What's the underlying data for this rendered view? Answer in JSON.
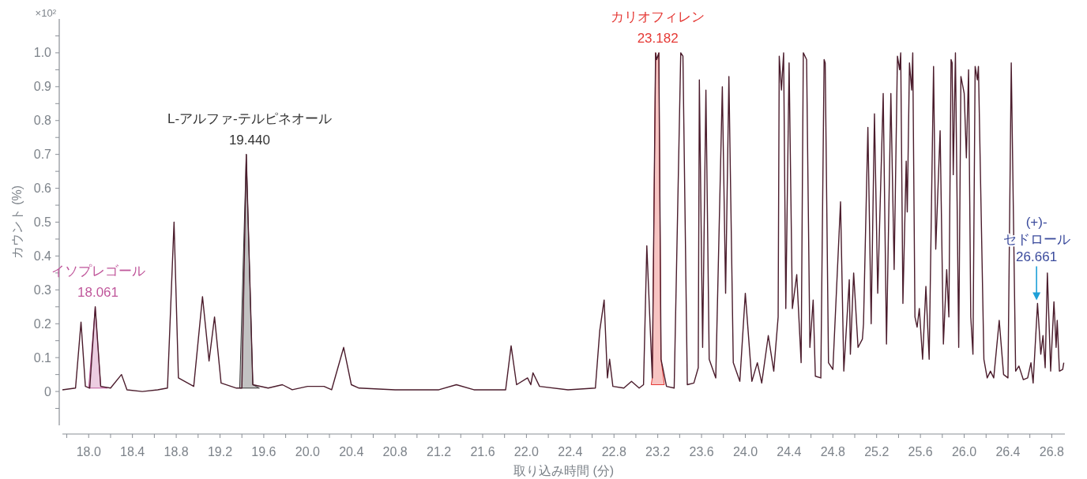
{
  "chart_data": {
    "type": "line",
    "xlabel": "取り込み時間 (分)",
    "ylabel": "カウント (%)",
    "xlim": [
      17.76,
      26.92
    ],
    "ylim": [
      -0.1,
      1.1
    ],
    "xticks": [
      {
        "value": 17.8,
        "label": null
      },
      {
        "value": 18.0,
        "label": "18.0"
      },
      {
        "value": 18.2,
        "label": null
      },
      {
        "value": 18.4,
        "label": "18.4"
      },
      {
        "value": 18.6,
        "label": null
      },
      {
        "value": 18.8,
        "label": "18.8"
      },
      {
        "value": 19.0,
        "label": null
      },
      {
        "value": 19.2,
        "label": "19.2"
      },
      {
        "value": 19.4,
        "label": null
      },
      {
        "value": 19.6,
        "label": "19.6"
      },
      {
        "value": 19.8,
        "label": null
      },
      {
        "value": 20.0,
        "label": "20.0"
      },
      {
        "value": 20.2,
        "label": null
      },
      {
        "value": 20.4,
        "label": "20.4"
      },
      {
        "value": 20.6,
        "label": null
      },
      {
        "value": 20.8,
        "label": "20.8"
      },
      {
        "value": 21.0,
        "label": null
      },
      {
        "value": 21.2,
        "label": "21.2"
      },
      {
        "value": 21.4,
        "label": null
      },
      {
        "value": 21.6,
        "label": "21.6"
      },
      {
        "value": 21.8,
        "label": null
      },
      {
        "value": 22.0,
        "label": "22.0"
      },
      {
        "value": 22.2,
        "label": null
      },
      {
        "value": 22.4,
        "label": "22.4"
      },
      {
        "value": 22.6,
        "label": null
      },
      {
        "value": 22.8,
        "label": "22.8"
      },
      {
        "value": 23.0,
        "label": null
      },
      {
        "value": 23.2,
        "label": "23.2"
      },
      {
        "value": 23.4,
        "label": null
      },
      {
        "value": 23.6,
        "label": "23.6"
      },
      {
        "value": 23.8,
        "label": null
      },
      {
        "value": 24.0,
        "label": "24.0"
      },
      {
        "value": 24.2,
        "label": null
      },
      {
        "value": 24.4,
        "label": "24.4"
      },
      {
        "value": 24.6,
        "label": null
      },
      {
        "value": 24.8,
        "label": "24.8"
      },
      {
        "value": 25.0,
        "label": null
      },
      {
        "value": 25.2,
        "label": "25.2"
      },
      {
        "value": 25.4,
        "label": null
      },
      {
        "value": 25.6,
        "label": "25.6"
      },
      {
        "value": 25.8,
        "label": null
      },
      {
        "value": 26.0,
        "label": "26.0"
      },
      {
        "value": 26.2,
        "label": null
      },
      {
        "value": 26.4,
        "label": "26.4"
      },
      {
        "value": 26.6,
        "label": null
      },
      {
        "value": 26.8,
        "label": "26.8"
      }
    ],
    "yticks": [
      {
        "value": -0.05,
        "label": null
      },
      {
        "value": 0,
        "label": "0"
      },
      {
        "value": 0.05,
        "label": null
      },
      {
        "value": 0.1,
        "label": "0.1"
      },
      {
        "value": 0.15,
        "label": null
      },
      {
        "value": 0.2,
        "label": "0.2"
      },
      {
        "value": 0.25,
        "label": null
      },
      {
        "value": 0.3,
        "label": "0.3"
      },
      {
        "value": 0.35,
        "label": null
      },
      {
        "value": 0.4,
        "label": "0.4"
      },
      {
        "value": 0.45,
        "label": null
      },
      {
        "value": 0.5,
        "label": "0.5"
      },
      {
        "value": 0.55,
        "label": null
      },
      {
        "value": 0.6,
        "label": "0.6"
      },
      {
        "value": 0.65,
        "label": null
      },
      {
        "value": 0.7,
        "label": "0.7"
      },
      {
        "value": 0.75,
        "label": null
      },
      {
        "value": 0.8,
        "label": "0.8"
      },
      {
        "value": 0.85,
        "label": null
      },
      {
        "value": 0.9,
        "label": "0.9"
      },
      {
        "value": 0.95,
        "label": null
      },
      {
        "value": 1.0,
        "label": "1.0"
      },
      {
        "value": 1.05,
        "label": null
      }
    ],
    "series": [
      {
        "color": "#4b1c2c",
        "x": [
          17.76,
          17.88,
          17.93,
          17.97,
          18.01,
          18.06,
          18.11,
          18.2,
          18.3,
          18.35,
          18.49,
          18.63,
          18.72,
          18.78,
          18.82,
          18.96,
          19.04,
          19.1,
          19.15,
          19.21,
          19.35,
          19.4,
          19.44,
          19.5,
          19.64,
          19.77,
          19.86,
          20.0,
          20.15,
          20.22,
          20.33,
          20.4,
          20.47,
          20.8,
          21.2,
          21.36,
          21.52,
          21.81,
          21.86,
          21.91,
          22.01,
          22.04,
          22.06,
          22.12,
          22.38,
          22.63,
          22.67,
          22.71,
          22.74,
          22.76,
          22.79,
          22.89,
          22.96,
          23.03,
          23.07,
          23.1,
          23.15,
          23.18,
          23.19,
          23.21,
          23.23,
          23.28,
          23.35,
          23.41,
          23.43,
          23.47,
          23.53,
          23.57,
          23.58,
          23.61,
          23.64,
          23.67,
          23.73,
          23.79,
          23.82,
          23.85,
          23.89,
          23.95,
          24.0,
          24.06,
          24.11,
          24.15,
          24.21,
          24.26,
          24.3,
          24.31,
          24.33,
          24.35,
          24.37,
          24.4,
          24.43,
          24.47,
          24.51,
          24.53,
          24.56,
          24.59,
          24.62,
          24.64,
          24.69,
          24.72,
          24.73,
          24.76,
          24.8,
          24.87,
          24.9,
          24.95,
          24.96,
          24.99,
          25.03,
          25.07,
          25.08,
          25.12,
          25.15,
          25.18,
          25.21,
          25.26,
          25.29,
          25.33,
          25.36,
          25.39,
          25.41,
          25.42,
          25.44,
          25.47,
          25.48,
          25.5,
          25.52,
          25.53,
          25.55,
          25.57,
          25.59,
          25.62,
          25.65,
          25.68,
          25.72,
          25.74,
          25.78,
          25.81,
          25.84,
          25.86,
          25.88,
          25.89,
          25.9,
          25.92,
          25.95,
          25.97,
          26.0,
          26.02,
          26.04,
          26.06,
          26.08,
          26.1,
          26.12,
          26.13,
          26.18,
          26.21,
          26.24,
          26.27,
          26.32,
          26.36,
          26.4,
          26.43,
          26.47,
          26.5,
          26.54,
          26.58,
          26.61,
          26.63,
          26.67,
          26.7,
          26.72,
          26.74,
          26.76,
          26.79,
          26.82,
          26.84,
          26.85,
          26.87,
          26.9,
          26.91
        ],
        "values": [
          0.005,
          0.01,
          0.205,
          0.015,
          0.01,
          0.25,
          0.015,
          0.01,
          0.05,
          0.005,
          0,
          0.005,
          0.01,
          0.5,
          0.04,
          0.015,
          0.28,
          0.09,
          0.22,
          0.025,
          0.01,
          0.01,
          0.7,
          0.02,
          0.01,
          0.02,
          0.005,
          0.015,
          0.015,
          0.005,
          0.13,
          0.02,
          0.01,
          0.005,
          0.005,
          0.02,
          0.005,
          0.005,
          0.135,
          0.02,
          0.04,
          0.02,
          0.055,
          0.015,
          0.005,
          0.01,
          0.18,
          0.27,
          0.04,
          0.095,
          0.015,
          0.01,
          0.03,
          0.01,
          0.02,
          0.43,
          0.04,
          1.0,
          0.98,
          1.0,
          0.095,
          0.015,
          0.01,
          1.0,
          0.99,
          0.02,
          0.025,
          0.07,
          0.92,
          0.13,
          0.89,
          0.095,
          0.04,
          0.9,
          0.29,
          0.93,
          0.085,
          0.03,
          0.29,
          0.03,
          0.085,
          0.025,
          0.165,
          0.06,
          0.22,
          0.99,
          0.89,
          1.0,
          0.245,
          0.97,
          0.245,
          0.345,
          0.085,
          1.0,
          0.98,
          0.13,
          0.27,
          0.045,
          0.04,
          0.98,
          0.97,
          0.085,
          0.065,
          0.56,
          0.06,
          0.33,
          0.11,
          0.35,
          0.13,
          0.155,
          0.2,
          0.78,
          0.2,
          0.82,
          0.29,
          0.88,
          0.14,
          0.88,
          0.36,
          0.99,
          0.95,
          1.0,
          0.26,
          0.68,
          0.53,
          0.97,
          0.89,
          1.0,
          0.22,
          0.19,
          0.245,
          0.095,
          0.31,
          0.095,
          0.96,
          0.42,
          0.77,
          0.14,
          0.36,
          0.22,
          0.98,
          0.97,
          0.64,
          1.0,
          0.13,
          0.93,
          0.88,
          0.69,
          0.95,
          0.22,
          0.11,
          0.96,
          0.92,
          0.96,
          0.095,
          0.04,
          0.06,
          0.04,
          0.21,
          0.05,
          0.04,
          0.97,
          0.06,
          0.075,
          0.035,
          0.04,
          0.085,
          0.025,
          0.26,
          0.11,
          0.165,
          0.07,
          0.35,
          0.06,
          0.265,
          0.13,
          0.21,
          0.06,
          0.065,
          0.085
        ]
      },
      {
        "type": "area",
        "name": "イソプレゴール",
        "color": "#c0579b",
        "x": [
          18.0,
          18.06,
          18.11,
          18.17
        ],
        "values": [
          0.01,
          0.25,
          0.015,
          0.01
        ]
      },
      {
        "type": "area",
        "name": "L-アルファ-テルピネオール",
        "color": "#333333",
        "x": [
          19.38,
          19.44,
          19.5,
          19.56
        ],
        "values": [
          0.01,
          0.7,
          0.02,
          0.01
        ]
      },
      {
        "type": "area",
        "name": "カリオフィレン",
        "color": "#e53935",
        "x": [
          23.14,
          23.15,
          23.18,
          23.19,
          23.21,
          23.23,
          23.26
        ],
        "values": [
          0.02,
          0.04,
          1.0,
          0.98,
          1.0,
          0.095,
          0.02
        ]
      }
    ],
    "annotations": [
      "×10²",
      {
        "text": "18.061",
        "x": 18.061,
        "y": 0.25
      },
      {
        "text": "19.440",
        "x": 19.44,
        "y": 0.7
      },
      {
        "text": "23.182",
        "x": 23.182,
        "y": 1.0
      },
      "(+)-セドロール",
      {
        "text": "26.661",
        "x": 26.661,
        "y": 0.26
      }
    ]
  }
}
